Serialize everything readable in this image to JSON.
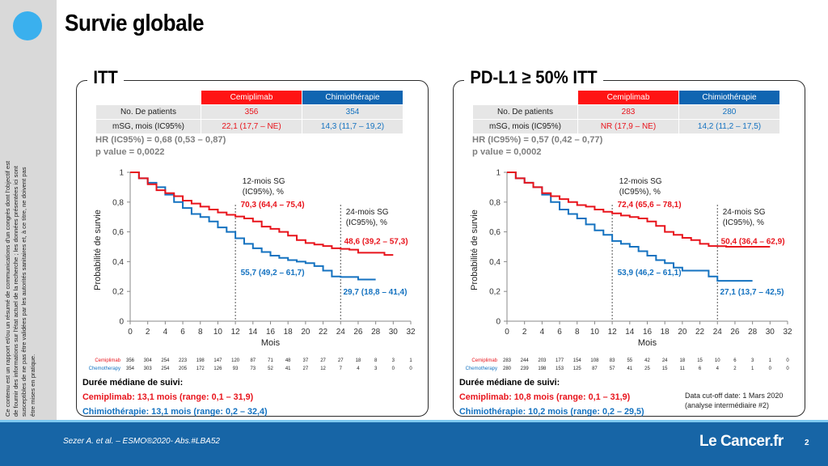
{
  "slide": {
    "title": "Survie globale",
    "disclaimer": "Ce contenu est un rapport et/ou un résumé de communications d'un congrès dont l'objectif est de fournir des informations sur l'état actuel de la recherche ; les données présentées ici sont susceptibles de ne pas être validées par les autorités sanitaires et, à ce titre, ne doivent pas être mises en pratique.",
    "citation": "Sezer A. et al. – ESMO®2020- Abs.#LBA52",
    "logo": "Le Cancer.fr",
    "page_number": "2"
  },
  "colors": {
    "cemiplimab": "#e8141c",
    "chemo": "#1472c0",
    "accent": "#3ab0ee",
    "footer": "#1765a6"
  },
  "panels": [
    {
      "title": "ITT",
      "table": {
        "headers": [
          "Cemiplimab",
          "Chimiothérapie"
        ],
        "rows": [
          {
            "label": "No. De patients",
            "cemi": "356",
            "chemo": "354"
          },
          {
            "label": "mSG, mois (IC95%)",
            "cemi": "22,1 (17,7 – NE)",
            "chemo": "14,3 (11,7 – 19,2)"
          }
        ]
      },
      "hr": "HR (IC95%) = 0,68 (0,53 – 0,87)",
      "p": "p value = 0,0022",
      "followup_title": "Durée médiane de suivi:",
      "followup_cemi": "Cemiplimab: 13,1 mois (range: 0,1 – 31,9)",
      "followup_chemo": "Chimiothérapie: 13,1 mois (range: 0,2 – 32,4)",
      "cutoff": ""
    },
    {
      "title": "PD-L1 ≥ 50% ITT",
      "table": {
        "headers": [
          "Cemiplimab",
          "Chimiothérapie"
        ],
        "rows": [
          {
            "label": "No. De patients",
            "cemi": "283",
            "chemo": "280"
          },
          {
            "label": "mSG, mois (IC95%)",
            "cemi": "NR (17,9 – NE)",
            "chemo": "14,2 (11,2 – 17,5)"
          }
        ]
      },
      "hr": "HR (IC95%) = 0,57 (0,42 – 0,77)",
      "p": "p value = 0,0002",
      "followup_title": "Durée médiane de suivi:",
      "followup_cemi": "Cemiplimab: 10,8 mois (range: 0,1 – 31,9)",
      "followup_chemo": "Chimiothérapie: 10,2 mois (range: 0,2 – 29,5)",
      "cutoff": "Data cut-off date: 1 Mars 2020 (analyse intermédiaire #2)"
    }
  ],
  "chart_data": [
    {
      "type": "line",
      "xlabel": "Mois",
      "ylabel": "Probabilité de survie",
      "xlim": [
        0,
        32
      ],
      "ylim": [
        0,
        1
      ],
      "x_ticks": [
        "0",
        "2",
        "4",
        "6",
        "8",
        "10",
        "12",
        "14",
        "16",
        "18",
        "20",
        "22",
        "24",
        "26",
        "28",
        "30",
        "32"
      ],
      "y_ticks": [
        "0",
        "0,2",
        "0,4",
        "0,6",
        "0,8",
        "1"
      ],
      "y_tick_values": [
        0,
        0.2,
        0.4,
        0.6,
        0.8,
        1
      ],
      "marker_lines": [
        12,
        24
      ],
      "annotations": {
        "label12": [
          "12-mois SG",
          "(IC95%), %"
        ],
        "label24": [
          "24-mois SG",
          "(IC95%), %"
        ],
        "cemi12": "70,3 (64,4 – 75,4)",
        "chemo12": "55,7 (49,2 – 61,7)",
        "cemi24": "48,6 (39,2 – 57,3)",
        "chemo24": "29,7 (18,8 – 41,4)"
      },
      "series": [
        {
          "name": "Cemiplimab",
          "x": [
            0,
            1,
            2,
            3,
            4,
            5,
            6,
            7,
            8,
            9,
            10,
            11,
            12,
            13,
            14,
            15,
            16,
            17,
            18,
            19,
            20,
            21,
            22,
            23,
            24,
            25,
            26,
            27,
            28,
            29,
            30
          ],
          "y": [
            1,
            0.96,
            0.92,
            0.88,
            0.86,
            0.84,
            0.81,
            0.79,
            0.77,
            0.75,
            0.73,
            0.715,
            0.703,
            0.69,
            0.67,
            0.635,
            0.62,
            0.6,
            0.575,
            0.545,
            0.525,
            0.515,
            0.505,
            0.49,
            0.486,
            0.48,
            0.46,
            0.46,
            0.46,
            0.445,
            0.445
          ]
        },
        {
          "name": "Chemotherapy",
          "x": [
            0,
            1,
            2,
            3,
            4,
            5,
            6,
            7,
            8,
            9,
            10,
            11,
            12,
            13,
            14,
            15,
            16,
            17,
            18,
            19,
            20,
            21,
            22,
            23,
            24,
            25,
            26,
            27,
            28
          ],
          "y": [
            1,
            0.96,
            0.93,
            0.9,
            0.85,
            0.8,
            0.76,
            0.72,
            0.7,
            0.67,
            0.63,
            0.6,
            0.557,
            0.52,
            0.49,
            0.465,
            0.44,
            0.425,
            0.41,
            0.4,
            0.39,
            0.37,
            0.34,
            0.3,
            0.297,
            0.297,
            0.28,
            0.28,
            0.28
          ]
        }
      ],
      "risk_table": {
        "labels": [
          "Cemiplimab",
          "Chemotherapy"
        ],
        "rows": [
          [
            "356",
            "304",
            "254",
            "223",
            "198",
            "147",
            "120",
            "87",
            "71",
            "48",
            "37",
            "27",
            "27",
            "18",
            "8",
            "3",
            "1"
          ],
          [
            "354",
            "303",
            "254",
            "205",
            "172",
            "126",
            "93",
            "73",
            "52",
            "41",
            "27",
            "12",
            "7",
            "4",
            "3",
            "0",
            "0"
          ]
        ]
      }
    },
    {
      "type": "line",
      "xlabel": "Mois",
      "ylabel": "Probabilité de survie",
      "xlim": [
        0,
        32
      ],
      "ylim": [
        0,
        1
      ],
      "x_ticks": [
        "0",
        "2",
        "4",
        "6",
        "8",
        "10",
        "12",
        "14",
        "16",
        "18",
        "20",
        "22",
        "24",
        "26",
        "28",
        "30",
        "32"
      ],
      "y_ticks": [
        "0",
        "0,2",
        "0,4",
        "0,6",
        "0,8",
        "1"
      ],
      "y_tick_values": [
        0,
        0.2,
        0.4,
        0.6,
        0.8,
        1
      ],
      "marker_lines": [
        12,
        24
      ],
      "annotations": {
        "label12": [
          "12-mois SG",
          "(IC95%), %"
        ],
        "label24": [
          "24-mois SG",
          "(IC95%), %"
        ],
        "cemi12": "72,4 (65,6 – 78,1)",
        "chemo12": "53,9 (46,2 – 61,1)",
        "cemi24": "50,4 (36,4 – 62,9)",
        "chemo24": "27,1 (13,7 – 42,5)"
      },
      "series": [
        {
          "name": "Cemiplimab",
          "x": [
            0,
            1,
            2,
            3,
            4,
            5,
            6,
            7,
            8,
            9,
            10,
            11,
            12,
            13,
            14,
            15,
            16,
            17,
            18,
            19,
            20,
            21,
            22,
            23,
            24,
            25,
            26,
            27,
            28,
            29,
            30
          ],
          "y": [
            1,
            0.96,
            0.93,
            0.9,
            0.86,
            0.84,
            0.82,
            0.8,
            0.78,
            0.77,
            0.75,
            0.735,
            0.724,
            0.71,
            0.7,
            0.69,
            0.67,
            0.64,
            0.6,
            0.58,
            0.56,
            0.545,
            0.52,
            0.505,
            0.504,
            0.5,
            0.5,
            0.5,
            0.5,
            0.5,
            0.5
          ]
        },
        {
          "name": "Chemotherapy",
          "x": [
            0,
            1,
            2,
            3,
            4,
            5,
            6,
            7,
            8,
            9,
            10,
            11,
            12,
            13,
            14,
            15,
            16,
            17,
            18,
            19,
            20,
            21,
            22,
            23,
            24,
            25,
            26,
            27,
            28
          ],
          "y": [
            1,
            0.96,
            0.93,
            0.9,
            0.85,
            0.8,
            0.75,
            0.72,
            0.69,
            0.65,
            0.61,
            0.58,
            0.539,
            0.52,
            0.5,
            0.47,
            0.44,
            0.41,
            0.39,
            0.36,
            0.34,
            0.34,
            0.34,
            0.3,
            0.271,
            0.271,
            0.271,
            0.271,
            0.271
          ]
        }
      ],
      "risk_table": {
        "labels": [
          "Cemiplimab",
          "Chemotherapy"
        ],
        "rows": [
          [
            "283",
            "244",
            "203",
            "177",
            "154",
            "108",
            "83",
            "55",
            "42",
            "24",
            "18",
            "15",
            "10",
            "6",
            "3",
            "1",
            "0"
          ],
          [
            "280",
            "239",
            "198",
            "153",
            "125",
            "87",
            "57",
            "41",
            "25",
            "15",
            "11",
            "6",
            "4",
            "2",
            "1",
            "0",
            "0"
          ]
        ]
      }
    }
  ]
}
